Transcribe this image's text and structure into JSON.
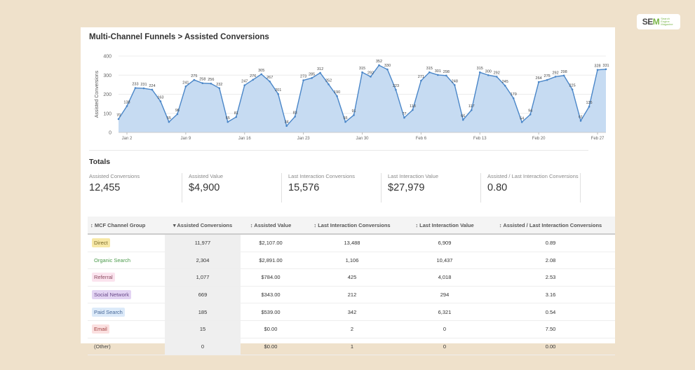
{
  "logo": {
    "brand_a": "SE",
    "brand_b": "M",
    "tag": "Search Engine Magazine"
  },
  "title": "Multi-Channel Funnels > Assisted Conversions",
  "chart_data": {
    "type": "area",
    "ylabel": "Assisted Conversions",
    "ylim": [
      0,
      400
    ],
    "yticks": [
      0,
      100,
      200,
      300,
      400
    ],
    "xticks": [
      {
        "label": "Jan 2",
        "index": 1
      },
      {
        "label": "Jan 9",
        "index": 8
      },
      {
        "label": "Jan 16",
        "index": 15
      },
      {
        "label": "Jan 23",
        "index": 22
      },
      {
        "label": "Jan 30",
        "index": 29
      },
      {
        "label": "Feb 6",
        "index": 36
      },
      {
        "label": "Feb 13",
        "index": 43
      },
      {
        "label": "Feb 20",
        "index": 50
      },
      {
        "label": "Feb 27",
        "index": 57
      }
    ],
    "values": [
      70,
      138,
      233,
      231,
      224,
      163,
      55,
      96,
      241,
      275,
      258,
      256,
      232,
      55,
      81,
      247,
      276,
      305,
      267,
      201,
      34,
      83,
      273,
      285,
      312,
      252,
      190,
      55,
      91,
      315,
      292,
      352,
      330,
      223,
      77,
      118,
      271,
      315,
      301,
      298,
      248,
      66,
      117,
      315,
      300,
      292,
      245,
      179,
      54,
      94,
      264,
      275,
      292,
      298,
      225,
      61,
      135,
      328,
      331
    ],
    "color": "#4a86c8",
    "fill": "#c6dbf2",
    "grid": true
  },
  "totals": {
    "heading": "Totals",
    "items": [
      {
        "label": "Assisted Conversions",
        "value": "12,455"
      },
      {
        "label": "Assisted Value",
        "value": "$4,900"
      },
      {
        "label": "Last Interaction Conversions",
        "value": "15,576"
      },
      {
        "label": "Last Interaction Value",
        "value": "$27,979"
      },
      {
        "label": "Assisted / Last Interaction Conversions",
        "value": "0.80"
      }
    ]
  },
  "table": {
    "headers": [
      "↕ MCF Channel Group",
      "▾ Assisted Conversions",
      "↕ Assisted Value",
      "↕ Last Interaction Conversions",
      "↕ Last Interaction Value",
      "↕ Assisted / Last Interaction Conversions"
    ],
    "rows": [
      {
        "channel": "Direct",
        "chip_bg": "#f7e8a6",
        "chip_fg": "#7a6a2a",
        "cells": [
          "11,977",
          "$2,107.00",
          "13,488",
          "6,909",
          "0.89"
        ]
      },
      {
        "channel": "Organic Search",
        "chip_bg": "transparent",
        "chip_fg": "#4a9a4a",
        "cells": [
          "2,304",
          "$2,891.00",
          "1,106",
          "10,437",
          "2.08"
        ]
      },
      {
        "channel": "Referral",
        "chip_bg": "#fbe3ee",
        "chip_fg": "#8a4a60",
        "cells": [
          "1,077",
          "$784.00",
          "425",
          "4,018",
          "2.53"
        ]
      },
      {
        "channel": "Social Network",
        "chip_bg": "#e3d4f3",
        "chip_fg": "#6a4a8a",
        "cells": [
          "669",
          "$343.00",
          "212",
          "294",
          "3.16"
        ]
      },
      {
        "channel": "Paid Search",
        "chip_bg": "#dceaf9",
        "chip_fg": "#4a6a9a",
        "cells": [
          "185",
          "$539.00",
          "342",
          "6,321",
          "0.54"
        ]
      },
      {
        "channel": "Email",
        "chip_bg": "#fbe0e0",
        "chip_fg": "#a04040",
        "cells": [
          "15",
          "$0.00",
          "2",
          "0",
          "7.50"
        ]
      },
      {
        "channel": "(Other)",
        "chip_bg": "transparent",
        "chip_fg": "#444",
        "cells": [
          "0",
          "$0.00",
          "1",
          "0",
          "0.00"
        ]
      }
    ]
  }
}
